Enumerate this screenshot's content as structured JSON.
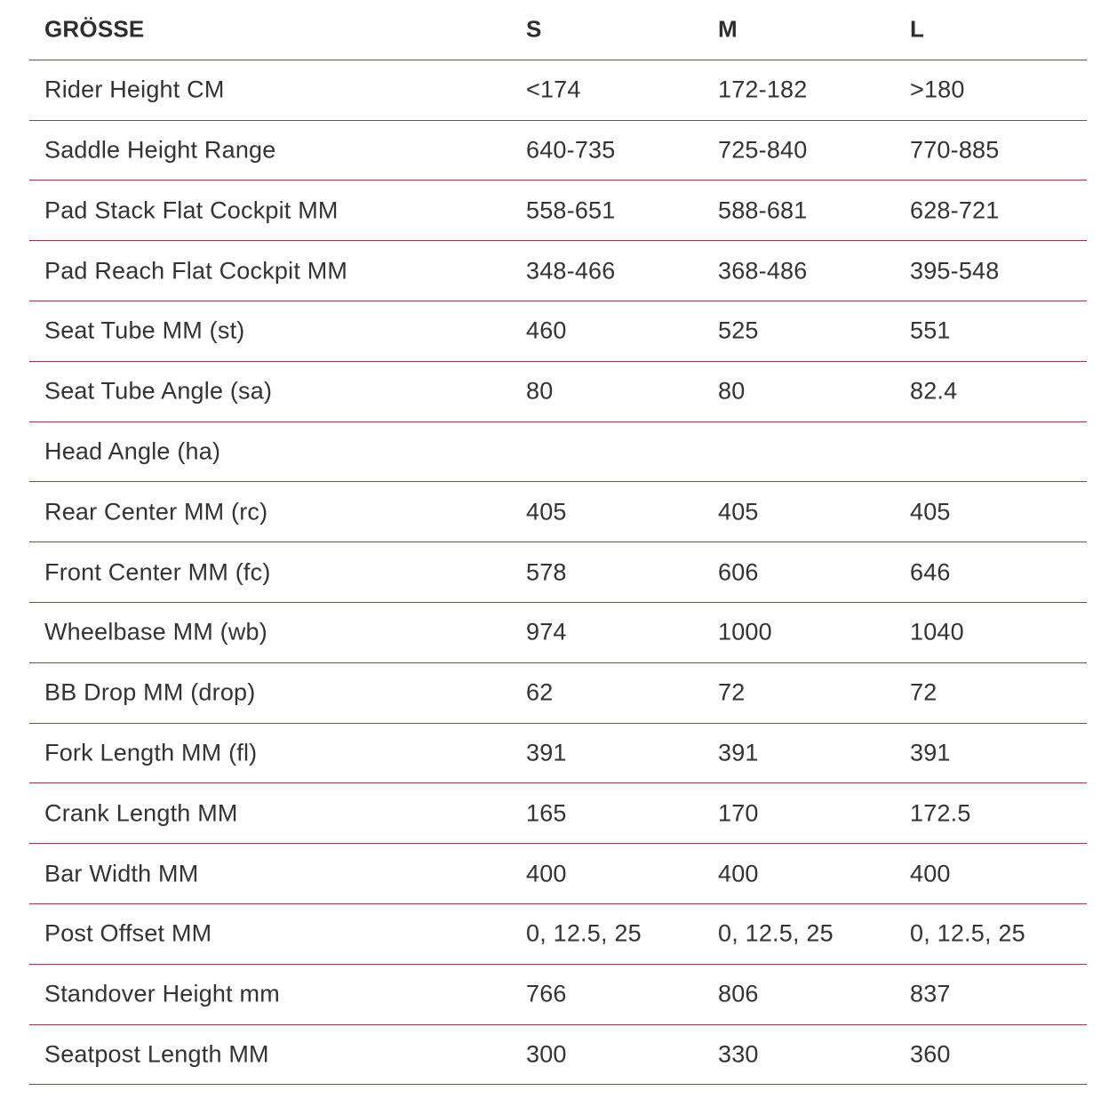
{
  "table": {
    "divider_color": "#a63a40",
    "text_color": "#333333",
    "header": {
      "label": "GRÖSSE",
      "columns": [
        "S",
        "M",
        "L"
      ]
    },
    "rows": [
      {
        "label": "Rider Height CM",
        "values": [
          "<174",
          "172-182",
          ">180"
        ]
      },
      {
        "label": "Saddle Height Range",
        "values": [
          "640-735",
          "725-840",
          "770-885"
        ]
      },
      {
        "label": "Pad Stack Flat Cockpit MM",
        "values": [
          "558-651",
          "588-681",
          "628-721"
        ]
      },
      {
        "label": "Pad Reach Flat Cockpit MM",
        "values": [
          "348-466",
          "368-486",
          "395-548"
        ]
      },
      {
        "label": "Seat Tube MM (st)",
        "values": [
          "460",
          "525",
          "551"
        ]
      },
      {
        "label": "Seat Tube Angle (sa)",
        "values": [
          "80",
          "80",
          "82.4"
        ]
      },
      {
        "label": "Head Angle (ha)",
        "values": [
          "",
          "",
          ""
        ]
      },
      {
        "label": "Rear Center MM (rc)",
        "values": [
          "405",
          "405",
          "405"
        ]
      },
      {
        "label": "Front Center MM (fc)",
        "values": [
          "578",
          "606",
          "646"
        ]
      },
      {
        "label": "Wheelbase MM (wb)",
        "values": [
          "974",
          "1000",
          "1040"
        ]
      },
      {
        "label": "BB Drop MM (drop)",
        "values": [
          "62",
          "72",
          "72"
        ]
      },
      {
        "label": "Fork Length MM (fl)",
        "values": [
          "391",
          "391",
          "391"
        ]
      },
      {
        "label": "Crank Length MM",
        "values": [
          "165",
          "170",
          "172.5"
        ]
      },
      {
        "label": "Bar Width MM",
        "values": [
          "400",
          "400",
          "400"
        ]
      },
      {
        "label": "Post Offset MM",
        "values": [
          "0, 12.5, 25",
          "0, 12.5, 25",
          "0, 12.5, 25"
        ]
      },
      {
        "label": "Standover Height mm",
        "values": [
          "766",
          "806",
          "837"
        ]
      },
      {
        "label": "Seatpost Length MM",
        "values": [
          "300",
          "330",
          "360"
        ]
      }
    ]
  }
}
